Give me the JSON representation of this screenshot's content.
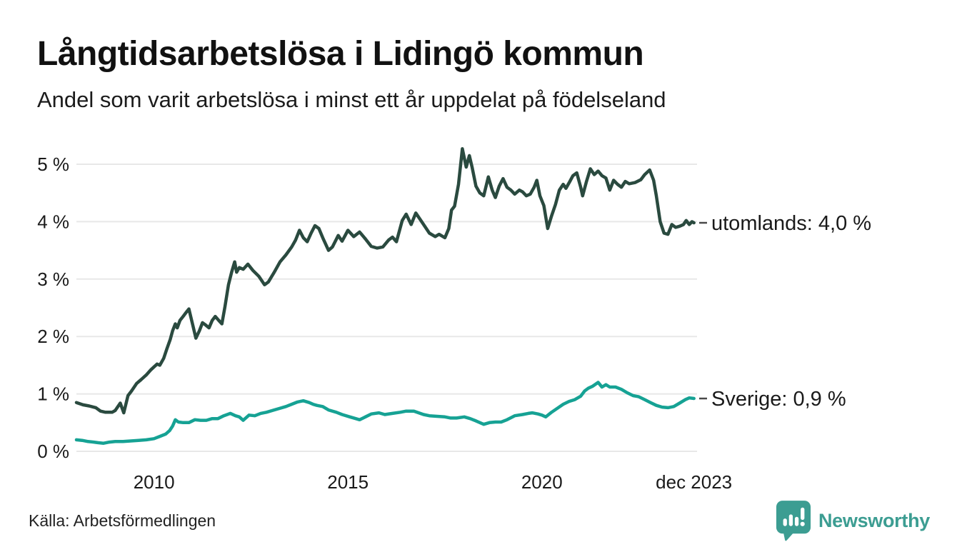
{
  "header": {
    "title": "Långtidsarbetslösa i Lidingö kommun",
    "subtitle": "Andel som varit arbetslösa i minst ett år uppdelat på födelseland"
  },
  "chart_data": {
    "type": "line",
    "title": "Långtidsarbetslösa i Lidingö kommun",
    "subtitle": "Andel som varit arbetslösa i minst ett år uppdelat på födelseland",
    "unit": "percent",
    "xlim": [
      2008,
      2024
    ],
    "ylim": [
      0,
      5.5
    ],
    "grid": "horizontal",
    "legend_position": "end-of-line",
    "yticks": [
      {
        "value": 0,
        "label": "0 %"
      },
      {
        "value": 1,
        "label": "1 %"
      },
      {
        "value": 2,
        "label": "2 %"
      },
      {
        "value": 3,
        "label": "3 %"
      },
      {
        "value": 4,
        "label": "4 %"
      },
      {
        "value": 5,
        "label": "5 %"
      }
    ],
    "xticks": [
      {
        "value": 2010,
        "label": "2010"
      },
      {
        "value": 2015,
        "label": "2015"
      },
      {
        "value": 2020,
        "label": "2020"
      },
      {
        "value": 2023.92,
        "label": "dec 2023"
      }
    ],
    "series": [
      {
        "name": "utomlands",
        "color": "#2A4A3F",
        "end_label": "utomlands: 4,0 %",
        "end_value": 4.0,
        "points": [
          [
            2008.0,
            0.85
          ],
          [
            2008.17,
            0.81
          ],
          [
            2008.33,
            0.79
          ],
          [
            2008.5,
            0.76
          ],
          [
            2008.62,
            0.7
          ],
          [
            2008.75,
            0.68
          ],
          [
            2008.92,
            0.68
          ],
          [
            2009.0,
            0.71
          ],
          [
            2009.13,
            0.84
          ],
          [
            2009.22,
            0.67
          ],
          [
            2009.33,
            0.97
          ],
          [
            2009.42,
            1.05
          ],
          [
            2009.55,
            1.18
          ],
          [
            2009.67,
            1.25
          ],
          [
            2009.8,
            1.33
          ],
          [
            2009.92,
            1.42
          ],
          [
            2010.0,
            1.47
          ],
          [
            2010.08,
            1.52
          ],
          [
            2010.15,
            1.5
          ],
          [
            2010.25,
            1.62
          ],
          [
            2010.33,
            1.78
          ],
          [
            2010.42,
            1.95
          ],
          [
            2010.48,
            2.1
          ],
          [
            2010.55,
            2.22
          ],
          [
            2010.6,
            2.15
          ],
          [
            2010.67,
            2.28
          ],
          [
            2010.75,
            2.35
          ],
          [
            2010.83,
            2.42
          ],
          [
            2010.9,
            2.48
          ],
          [
            2011.0,
            2.2
          ],
          [
            2011.08,
            1.97
          ],
          [
            2011.17,
            2.1
          ],
          [
            2011.25,
            2.24
          ],
          [
            2011.33,
            2.2
          ],
          [
            2011.42,
            2.15
          ],
          [
            2011.5,
            2.28
          ],
          [
            2011.58,
            2.35
          ],
          [
            2011.67,
            2.28
          ],
          [
            2011.75,
            2.22
          ],
          [
            2011.83,
            2.52
          ],
          [
            2011.92,
            2.9
          ],
          [
            2012.0,
            3.12
          ],
          [
            2012.08,
            3.3
          ],
          [
            2012.13,
            3.12
          ],
          [
            2012.2,
            3.2
          ],
          [
            2012.3,
            3.17
          ],
          [
            2012.42,
            3.26
          ],
          [
            2012.55,
            3.15
          ],
          [
            2012.7,
            3.05
          ],
          [
            2012.85,
            2.9
          ],
          [
            2012.95,
            2.95
          ],
          [
            2013.1,
            3.12
          ],
          [
            2013.25,
            3.3
          ],
          [
            2013.4,
            3.42
          ],
          [
            2013.55,
            3.56
          ],
          [
            2013.65,
            3.68
          ],
          [
            2013.75,
            3.85
          ],
          [
            2013.85,
            3.72
          ],
          [
            2013.95,
            3.65
          ],
          [
            2014.05,
            3.8
          ],
          [
            2014.15,
            3.93
          ],
          [
            2014.25,
            3.88
          ],
          [
            2014.35,
            3.72
          ],
          [
            2014.5,
            3.5
          ],
          [
            2014.6,
            3.56
          ],
          [
            2014.75,
            3.76
          ],
          [
            2014.85,
            3.66
          ],
          [
            2015.0,
            3.85
          ],
          [
            2015.15,
            3.74
          ],
          [
            2015.3,
            3.82
          ],
          [
            2015.45,
            3.7
          ],
          [
            2015.6,
            3.57
          ],
          [
            2015.75,
            3.54
          ],
          [
            2015.9,
            3.56
          ],
          [
            2016.05,
            3.68
          ],
          [
            2016.15,
            3.73
          ],
          [
            2016.25,
            3.65
          ],
          [
            2016.4,
            4.02
          ],
          [
            2016.5,
            4.13
          ],
          [
            2016.63,
            3.95
          ],
          [
            2016.75,
            4.15
          ],
          [
            2016.85,
            4.05
          ],
          [
            2016.95,
            3.95
          ],
          [
            2017.1,
            3.8
          ],
          [
            2017.25,
            3.74
          ],
          [
            2017.35,
            3.78
          ],
          [
            2017.5,
            3.72
          ],
          [
            2017.6,
            3.88
          ],
          [
            2017.67,
            4.2
          ],
          [
            2017.75,
            4.27
          ],
          [
            2017.85,
            4.65
          ],
          [
            2017.95,
            5.27
          ],
          [
            2018.05,
            4.95
          ],
          [
            2018.13,
            5.15
          ],
          [
            2018.2,
            4.95
          ],
          [
            2018.3,
            4.62
          ],
          [
            2018.4,
            4.5
          ],
          [
            2018.5,
            4.45
          ],
          [
            2018.62,
            4.78
          ],
          [
            2018.72,
            4.55
          ],
          [
            2018.8,
            4.42
          ],
          [
            2018.9,
            4.62
          ],
          [
            2019.0,
            4.75
          ],
          [
            2019.1,
            4.6
          ],
          [
            2019.2,
            4.55
          ],
          [
            2019.3,
            4.48
          ],
          [
            2019.42,
            4.55
          ],
          [
            2019.5,
            4.52
          ],
          [
            2019.6,
            4.45
          ],
          [
            2019.7,
            4.48
          ],
          [
            2019.8,
            4.6
          ],
          [
            2019.87,
            4.72
          ],
          [
            2019.95,
            4.45
          ],
          [
            2020.05,
            4.28
          ],
          [
            2020.15,
            3.88
          ],
          [
            2020.25,
            4.1
          ],
          [
            2020.35,
            4.3
          ],
          [
            2020.45,
            4.55
          ],
          [
            2020.55,
            4.65
          ],
          [
            2020.62,
            4.58
          ],
          [
            2020.72,
            4.7
          ],
          [
            2020.8,
            4.8
          ],
          [
            2020.9,
            4.85
          ],
          [
            2021.0,
            4.6
          ],
          [
            2021.05,
            4.45
          ],
          [
            2021.15,
            4.7
          ],
          [
            2021.25,
            4.92
          ],
          [
            2021.35,
            4.82
          ],
          [
            2021.45,
            4.88
          ],
          [
            2021.55,
            4.8
          ],
          [
            2021.65,
            4.76
          ],
          [
            2021.75,
            4.55
          ],
          [
            2021.85,
            4.72
          ],
          [
            2021.95,
            4.65
          ],
          [
            2022.05,
            4.6
          ],
          [
            2022.15,
            4.7
          ],
          [
            2022.25,
            4.66
          ],
          [
            2022.4,
            4.68
          ],
          [
            2022.55,
            4.73
          ],
          [
            2022.65,
            4.82
          ],
          [
            2022.78,
            4.9
          ],
          [
            2022.88,
            4.72
          ],
          [
            2022.95,
            4.45
          ],
          [
            2023.05,
            4.0
          ],
          [
            2023.15,
            3.8
          ],
          [
            2023.25,
            3.78
          ],
          [
            2023.35,
            3.95
          ],
          [
            2023.45,
            3.9
          ],
          [
            2023.55,
            3.92
          ],
          [
            2023.65,
            3.95
          ],
          [
            2023.72,
            4.02
          ],
          [
            2023.8,
            3.95
          ],
          [
            2023.87,
            4.0
          ],
          [
            2023.92,
            3.98
          ]
        ]
      },
      {
        "name": "Sverige",
        "color": "#16A294",
        "end_label": "Sverige: 0,9 %",
        "end_value": 0.9,
        "points": [
          [
            2008.0,
            0.2
          ],
          [
            2008.15,
            0.19
          ],
          [
            2008.3,
            0.17
          ],
          [
            2008.45,
            0.16
          ],
          [
            2008.55,
            0.15
          ],
          [
            2008.7,
            0.14
          ],
          [
            2008.85,
            0.16
          ],
          [
            2009.0,
            0.17
          ],
          [
            2009.2,
            0.17
          ],
          [
            2009.4,
            0.18
          ],
          [
            2009.6,
            0.19
          ],
          [
            2009.8,
            0.2
          ],
          [
            2010.0,
            0.22
          ],
          [
            2010.15,
            0.26
          ],
          [
            2010.3,
            0.3
          ],
          [
            2010.4,
            0.36
          ],
          [
            2010.48,
            0.44
          ],
          [
            2010.55,
            0.55
          ],
          [
            2010.63,
            0.51
          ],
          [
            2010.75,
            0.5
          ],
          [
            2010.9,
            0.5
          ],
          [
            2011.05,
            0.55
          ],
          [
            2011.2,
            0.54
          ],
          [
            2011.35,
            0.54
          ],
          [
            2011.5,
            0.57
          ],
          [
            2011.65,
            0.57
          ],
          [
            2011.8,
            0.62
          ],
          [
            2011.97,
            0.66
          ],
          [
            2012.1,
            0.62
          ],
          [
            2012.2,
            0.6
          ],
          [
            2012.3,
            0.54
          ],
          [
            2012.45,
            0.63
          ],
          [
            2012.6,
            0.62
          ],
          [
            2012.75,
            0.66
          ],
          [
            2012.9,
            0.68
          ],
          [
            2013.05,
            0.71
          ],
          [
            2013.2,
            0.74
          ],
          [
            2013.4,
            0.78
          ],
          [
            2013.55,
            0.82
          ],
          [
            2013.7,
            0.86
          ],
          [
            2013.85,
            0.88
          ],
          [
            2014.0,
            0.85
          ],
          [
            2014.1,
            0.82
          ],
          [
            2014.2,
            0.8
          ],
          [
            2014.35,
            0.78
          ],
          [
            2014.5,
            0.72
          ],
          [
            2014.7,
            0.68
          ],
          [
            2014.85,
            0.64
          ],
          [
            2015.05,
            0.6
          ],
          [
            2015.2,
            0.57
          ],
          [
            2015.3,
            0.55
          ],
          [
            2015.45,
            0.6
          ],
          [
            2015.6,
            0.65
          ],
          [
            2015.8,
            0.67
          ],
          [
            2015.95,
            0.64
          ],
          [
            2016.15,
            0.66
          ],
          [
            2016.35,
            0.68
          ],
          [
            2016.5,
            0.7
          ],
          [
            2016.7,
            0.7
          ],
          [
            2016.95,
            0.64
          ],
          [
            2017.1,
            0.62
          ],
          [
            2017.3,
            0.61
          ],
          [
            2017.5,
            0.6
          ],
          [
            2017.65,
            0.58
          ],
          [
            2017.8,
            0.58
          ],
          [
            2018.0,
            0.6
          ],
          [
            2018.15,
            0.57
          ],
          [
            2018.3,
            0.53
          ],
          [
            2018.5,
            0.47
          ],
          [
            2018.65,
            0.5
          ],
          [
            2018.8,
            0.51
          ],
          [
            2018.95,
            0.51
          ],
          [
            2019.1,
            0.55
          ],
          [
            2019.3,
            0.62
          ],
          [
            2019.5,
            0.64
          ],
          [
            2019.65,
            0.66
          ],
          [
            2019.75,
            0.67
          ],
          [
            2019.9,
            0.65
          ],
          [
            2020.0,
            0.63
          ],
          [
            2020.1,
            0.6
          ],
          [
            2020.25,
            0.68
          ],
          [
            2020.4,
            0.75
          ],
          [
            2020.55,
            0.82
          ],
          [
            2020.7,
            0.87
          ],
          [
            2020.85,
            0.9
          ],
          [
            2021.0,
            0.96
          ],
          [
            2021.1,
            1.05
          ],
          [
            2021.2,
            1.1
          ],
          [
            2021.3,
            1.13
          ],
          [
            2021.45,
            1.2
          ],
          [
            2021.55,
            1.12
          ],
          [
            2021.65,
            1.16
          ],
          [
            2021.75,
            1.12
          ],
          [
            2021.9,
            1.12
          ],
          [
            2022.05,
            1.08
          ],
          [
            2022.2,
            1.02
          ],
          [
            2022.35,
            0.97
          ],
          [
            2022.5,
            0.95
          ],
          [
            2022.65,
            0.9
          ],
          [
            2022.8,
            0.85
          ],
          [
            2022.95,
            0.8
          ],
          [
            2023.1,
            0.77
          ],
          [
            2023.25,
            0.76
          ],
          [
            2023.4,
            0.78
          ],
          [
            2023.55,
            0.84
          ],
          [
            2023.7,
            0.9
          ],
          [
            2023.8,
            0.93
          ],
          [
            2023.92,
            0.92
          ]
        ]
      }
    ]
  },
  "footer": {
    "source": "Källa: Arbetsförmedlingen",
    "brand": "Newsworthy"
  },
  "colors": {
    "background": "#ffffff",
    "title": "#111111",
    "text": "#1a1a1a",
    "grid": "#e8e8e8",
    "tick_dash": "#4a4a4a",
    "series_utomlands": "#2A4A3F",
    "series_sverige": "#16A294",
    "brand": "#3C9D92"
  }
}
